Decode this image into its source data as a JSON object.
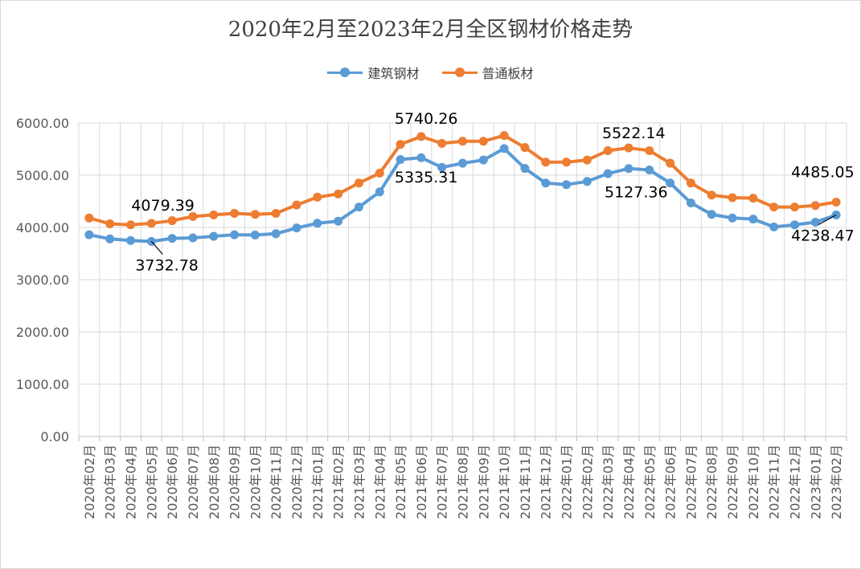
{
  "chart_data": {
    "type": "line",
    "title": "2020年2月至2023年2月全区钢材价格走势",
    "ylim": [
      0,
      6000
    ],
    "yticks": [
      "0.00",
      "1000.00",
      "2000.00",
      "3000.00",
      "4000.00",
      "5000.00",
      "6000.00"
    ],
    "grid": true,
    "legend_position": "top",
    "categories": [
      "2020年02月",
      "2020年03月",
      "2020年04月",
      "2020年05月",
      "2020年06月",
      "2020年07月",
      "2020年08月",
      "2020年09月",
      "2020年10月",
      "2020年11月",
      "2020年12月",
      "2021年01月",
      "2021年02月",
      "2021年03月",
      "2021年04月",
      "2021年05月",
      "2021年06月",
      "2021年07月",
      "2021年08月",
      "2021年09月",
      "2021年10月",
      "2021年11月",
      "2021年12月",
      "2022年01月",
      "2022年02月",
      "2022年03月",
      "2022年04月",
      "2022年05月",
      "2022年06月",
      "2022年07月",
      "2022年08月",
      "2022年09月",
      "2022年10月",
      "2022年11月",
      "2022年12月",
      "2023年01月",
      "2023年02月"
    ],
    "series": [
      {
        "name": "建筑钢材",
        "color": "#5b9bd5",
        "values": [
          3860,
          3780,
          3750,
          3732.78,
          3790,
          3800,
          3830,
          3860,
          3855,
          3880,
          3990,
          4080,
          4120,
          4390,
          4680,
          5300,
          5335.31,
          5150,
          5230,
          5290,
          5510,
          5130,
          4850,
          4820,
          4880,
          5030,
          5127.36,
          5100,
          4850,
          4470,
          4250,
          4180,
          4160,
          4010,
          4050,
          4100,
          4238.47
        ]
      },
      {
        "name": "普通板材",
        "color": "#ed7d31",
        "values": [
          4180,
          4070,
          4050,
          4079.39,
          4130,
          4210,
          4240,
          4270,
          4250,
          4270,
          4430,
          4580,
          4640,
          4850,
          5040,
          5590,
          5740.26,
          5610,
          5650,
          5650,
          5760,
          5530,
          5250,
          5250,
          5290,
          5470,
          5522.14,
          5470,
          5230,
          4850,
          4620,
          4570,
          4560,
          4390,
          4390,
          4420,
          4485.05
        ]
      }
    ],
    "annotations": [
      {
        "text": "4079.39",
        "series": 1,
        "index": 3
      },
      {
        "text": "3732.78",
        "series": 0,
        "index": 3
      },
      {
        "text": "5740.26",
        "series": 1,
        "index": 16
      },
      {
        "text": "5335.31",
        "series": 0,
        "index": 16
      },
      {
        "text": "5522.14",
        "series": 1,
        "index": 26
      },
      {
        "text": "5127.36",
        "series": 0,
        "index": 26
      },
      {
        "text": "4485.05",
        "series": 1,
        "index": 36
      },
      {
        "text": "4238.47",
        "series": 0,
        "index": 36
      }
    ]
  }
}
